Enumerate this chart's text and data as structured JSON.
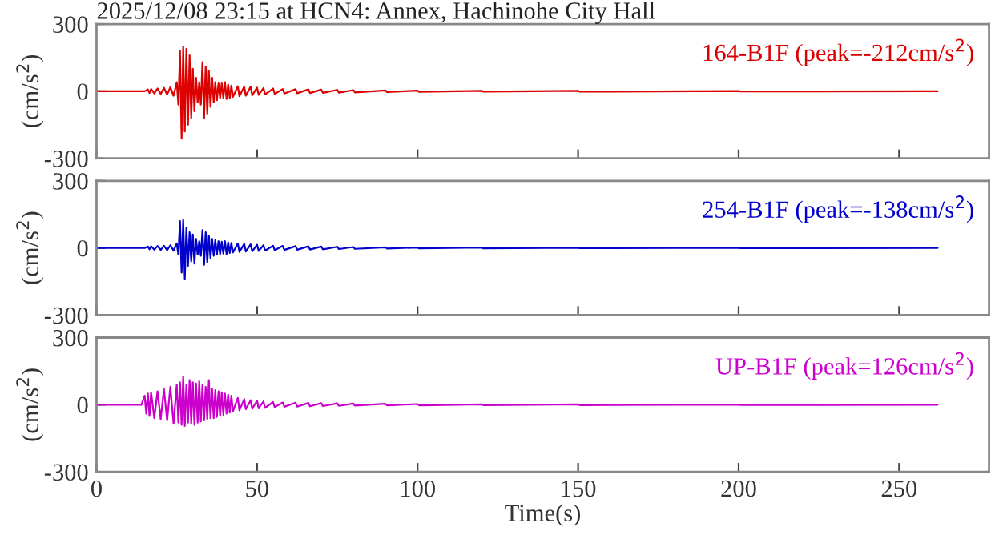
{
  "chart_data": [
    {
      "type": "line",
      "title": "2025/12/08 23:15 at HCN4: Annex, Hachinohe City Hall",
      "ylabel": "(cm/s$^{2}$)",
      "xlim": [
        0,
        278
      ],
      "xticks": [
        0,
        50,
        100,
        150,
        200,
        250
      ],
      "ylim": [
        -300,
        300
      ],
      "yticks": [
        -300,
        0,
        300
      ],
      "tick_labels": "y",
      "grid": false,
      "legend": "top right",
      "series": [
        {
          "name": "164-B1F (peak=-212cm/s$^{2}$)",
          "color": "#dd0000",
          "x": [
            0,
            15,
            16,
            16.5,
            17,
            18,
            19,
            20,
            21,
            22,
            23,
            24,
            25,
            25.5,
            26,
            26.5,
            27,
            27.5,
            28,
            28.5,
            29,
            29.5,
            30,
            30.5,
            31,
            31.5,
            32,
            32.5,
            33,
            33.5,
            34,
            34.5,
            35,
            35.5,
            36,
            36.5,
            37,
            37.5,
            38,
            38.5,
            39,
            39.5,
            40,
            40.5,
            41,
            41.5,
            42,
            42.5,
            44,
            44.5,
            46,
            46.5,
            48,
            48.5,
            50,
            50.5,
            52,
            52.5,
            55,
            55.5,
            58,
            58.5,
            62,
            62.5,
            66,
            66.5,
            70,
            70.5,
            75,
            75.5,
            80,
            80.5,
            90,
            90.5,
            100,
            100.5,
            120,
            120.5,
            150,
            150.5,
            200,
            200.5,
            262
          ],
          "values": [
            0,
            0,
            8,
            -8,
            10,
            -10,
            12,
            -12,
            15,
            -15,
            18,
            -20,
            40,
            -60,
            180,
            -212,
            200,
            -180,
            190,
            -150,
            160,
            -120,
            100,
            -90,
            60,
            -50,
            40,
            -60,
            130,
            -120,
            110,
            -100,
            90,
            -70,
            60,
            -50,
            40,
            -40,
            35,
            -30,
            35,
            -30,
            40,
            -35,
            30,
            -30,
            25,
            -25,
            22,
            -22,
            20,
            -20,
            20,
            -18,
            16,
            -16,
            14,
            -14,
            12,
            -12,
            10,
            -10,
            9,
            -9,
            8,
            -8,
            7,
            -7,
            6,
            -6,
            5,
            -5,
            4,
            -4,
            3,
            -3,
            2,
            -2,
            2,
            -2,
            1,
            -1,
            0
          ]
        }
      ]
    },
    {
      "type": "line",
      "ylabel": "(cm/s$^{2}$)",
      "xlim": [
        0,
        278
      ],
      "xticks": [
        0,
        50,
        100,
        150,
        200,
        250
      ],
      "ylim": [
        -300,
        300
      ],
      "yticks": [
        -300,
        0,
        300
      ],
      "tick_labels": "y",
      "grid": false,
      "legend": "top right",
      "series": [
        {
          "name": "254-B1F (peak=-138cm/s$^{2}$)",
          "color": "#0000cc",
          "x": [
            0,
            15,
            16,
            16.5,
            17,
            18,
            19,
            20,
            21,
            22,
            23,
            24,
            25,
            25.5,
            26,
            26.5,
            27,
            27.5,
            28,
            28.5,
            29,
            29.5,
            30,
            30.5,
            31,
            31.5,
            32,
            32.5,
            33,
            33.5,
            34,
            34.5,
            35,
            35.5,
            36,
            36.5,
            37,
            37.5,
            38,
            38.5,
            39,
            39.5,
            40,
            40.5,
            41,
            41.5,
            42,
            42.5,
            44,
            44.5,
            46,
            46.5,
            48,
            48.5,
            50,
            50.5,
            52,
            52.5,
            55,
            55.5,
            58,
            58.5,
            62,
            62.5,
            66,
            66.5,
            70,
            70.5,
            75,
            75.5,
            80,
            80.5,
            90,
            90.5,
            100,
            100.5,
            120,
            120.5,
            150,
            150.5,
            200,
            200.5,
            262
          ],
          "values": [
            0,
            0,
            6,
            -6,
            8,
            -8,
            9,
            -9,
            10,
            -10,
            12,
            -12,
            20,
            -30,
            120,
            -110,
            125,
            -138,
            90,
            -80,
            70,
            -60,
            60,
            -70,
            40,
            -30,
            30,
            -35,
            80,
            -75,
            70,
            -65,
            55,
            -45,
            40,
            -35,
            35,
            -30,
            30,
            -28,
            28,
            -25,
            30,
            -28,
            25,
            -22,
            22,
            -20,
            20,
            -18,
            18,
            -16,
            16,
            -15,
            14,
            -13,
            12,
            -12,
            10,
            -10,
            9,
            -9,
            8,
            -8,
            7,
            -7,
            6,
            -6,
            5,
            -5,
            4,
            -4,
            3,
            -3,
            2,
            -2,
            2,
            -2,
            1,
            -1,
            1,
            -1,
            0
          ]
        }
      ]
    },
    {
      "type": "line",
      "xlabel": "Time(s)",
      "ylabel": "(cm/s$^{2}$)",
      "xlim": [
        0,
        278
      ],
      "xticks": [
        0,
        50,
        100,
        150,
        200,
        250
      ],
      "ylim": [
        -300,
        300
      ],
      "yticks": [
        -300,
        0,
        300
      ],
      "grid": false,
      "legend": "top right",
      "series": [
        {
          "name": "UP-B1F (peak=126cm/s$^{2}$)",
          "color": "#cc00cc",
          "x": [
            0,
            14,
            15,
            15.5,
            16,
            16.5,
            17,
            18,
            19,
            20,
            21,
            22,
            23,
            24,
            25,
            25.5,
            26,
            26.5,
            27,
            27.5,
            28,
            28.5,
            29,
            29.5,
            30,
            30.5,
            31,
            31.5,
            32,
            32.5,
            33,
            33.5,
            34,
            34.5,
            35,
            35.5,
            36,
            36.5,
            37,
            37.5,
            38,
            38.5,
            39,
            39.5,
            40,
            40.5,
            41,
            41.5,
            42,
            42.5,
            44,
            44.5,
            46,
            46.5,
            48,
            48.5,
            50,
            50.5,
            52,
            52.5,
            55,
            55.5,
            58,
            58.5,
            62,
            62.5,
            66,
            66.5,
            70,
            70.5,
            75,
            75.5,
            80,
            80.5,
            90,
            90.5,
            100,
            100.5,
            120,
            120.5,
            150,
            150.5,
            200,
            200.5,
            262
          ],
          "values": [
            0,
            0,
            40,
            -40,
            50,
            -50,
            55,
            -60,
            60,
            -65,
            70,
            -70,
            80,
            -85,
            90,
            -80,
            100,
            -90,
            126,
            -95,
            90,
            -80,
            110,
            -85,
            100,
            -90,
            95,
            -80,
            105,
            -75,
            90,
            -70,
            80,
            -65,
            110,
            -60,
            70,
            -60,
            65,
            -55,
            60,
            -50,
            55,
            -45,
            50,
            -40,
            45,
            -35,
            40,
            -30,
            30,
            -25,
            25,
            -20,
            20,
            -18,
            18,
            -16,
            15,
            -14,
            12,
            -11,
            10,
            -9,
            9,
            -8,
            8,
            -7,
            7,
            -6,
            6,
            -5,
            5,
            -4,
            4,
            -3,
            3,
            -3,
            2,
            -2,
            2,
            -2,
            1,
            -1,
            0
          ]
        }
      ]
    }
  ]
}
